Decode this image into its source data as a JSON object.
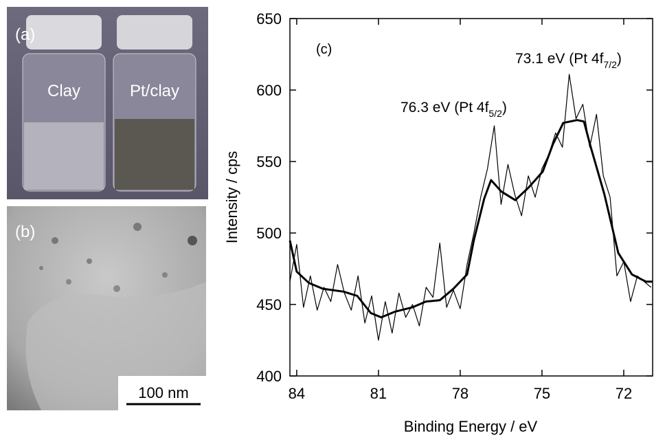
{
  "panel_a": {
    "label": "(a)",
    "vials": [
      "Clay",
      "Pt/clay"
    ]
  },
  "panel_b": {
    "label": "(b)",
    "scale_bar": "100 nm"
  },
  "chart_data": {
    "type": "line",
    "panel_label": "(c)",
    "x_label": "Binding Energy / eV",
    "y_label": "Intensity / cps",
    "xlim": [
      84.25,
      70.94
    ],
    "ylim": [
      400,
      650
    ],
    "xticks": [
      84,
      81,
      78,
      75,
      72
    ],
    "yticks": [
      400,
      450,
      500,
      550,
      600,
      650
    ],
    "annotations": [
      {
        "text": "73.1 eV (Pt 4f",
        "sub": "7/2",
        "end": ")"
      },
      {
        "text": "76.3 eV (Pt 4f",
        "sub": "5/2",
        "end": ")"
      }
    ],
    "series": [
      {
        "color": "#000000",
        "width": 1.2,
        "x": [
          84.25,
          84,
          83.75,
          83.5,
          83.25,
          83,
          82.75,
          82.5,
          82.25,
          82,
          81.75,
          81.5,
          81.25,
          81,
          80.75,
          80.5,
          80.25,
          80,
          79.75,
          79.5,
          79.25,
          79,
          78.75,
          78.5,
          78.25,
          78,
          77.75,
          77.5,
          77.25,
          77,
          76.75,
          76.5,
          76.25,
          76,
          75.75,
          75.5,
          75.25,
          75,
          74.75,
          74.5,
          74.25,
          74,
          73.75,
          73.5,
          73.25,
          73,
          72.75,
          72.5,
          72.25,
          72,
          71.75,
          71.5,
          71.25,
          71
        ],
        "values": [
          466,
          492,
          448,
          470,
          446,
          462,
          452,
          478,
          458,
          446,
          470,
          437,
          456,
          425,
          452,
          430,
          458,
          441,
          450,
          435,
          462,
          455,
          493,
          448,
          460,
          447,
          478,
          500,
          525,
          545,
          575,
          520,
          548,
          527,
          512,
          540,
          525,
          545,
          555,
          570,
          560,
          611,
          580,
          590,
          560,
          583,
          540,
          525,
          470,
          480,
          452,
          470,
          466,
          462
        ]
      },
      {
        "color": "#000000",
        "width": 3,
        "x": [
          84.25,
          84.0,
          83.55,
          83.04,
          82.28,
          81.78,
          81.28,
          80.9,
          80.39,
          79.76,
          79.26,
          78.75,
          78.25,
          77.75,
          77.5,
          77.12,
          76.87,
          76.49,
          75.98,
          75.48,
          74.97,
          74.6,
          74.22,
          73.71,
          73.46,
          73.21,
          72.71,
          72.2,
          71.7,
          71.19,
          70.94
        ],
        "values": [
          494.7,
          473,
          465,
          461,
          459,
          456,
          444,
          441,
          445,
          448,
          452,
          453,
          461,
          471,
          495,
          524,
          537,
          529,
          523,
          532,
          543,
          562,
          577,
          579,
          578,
          560,
          527,
          486,
          471,
          466,
          466
        ]
      }
    ]
  }
}
